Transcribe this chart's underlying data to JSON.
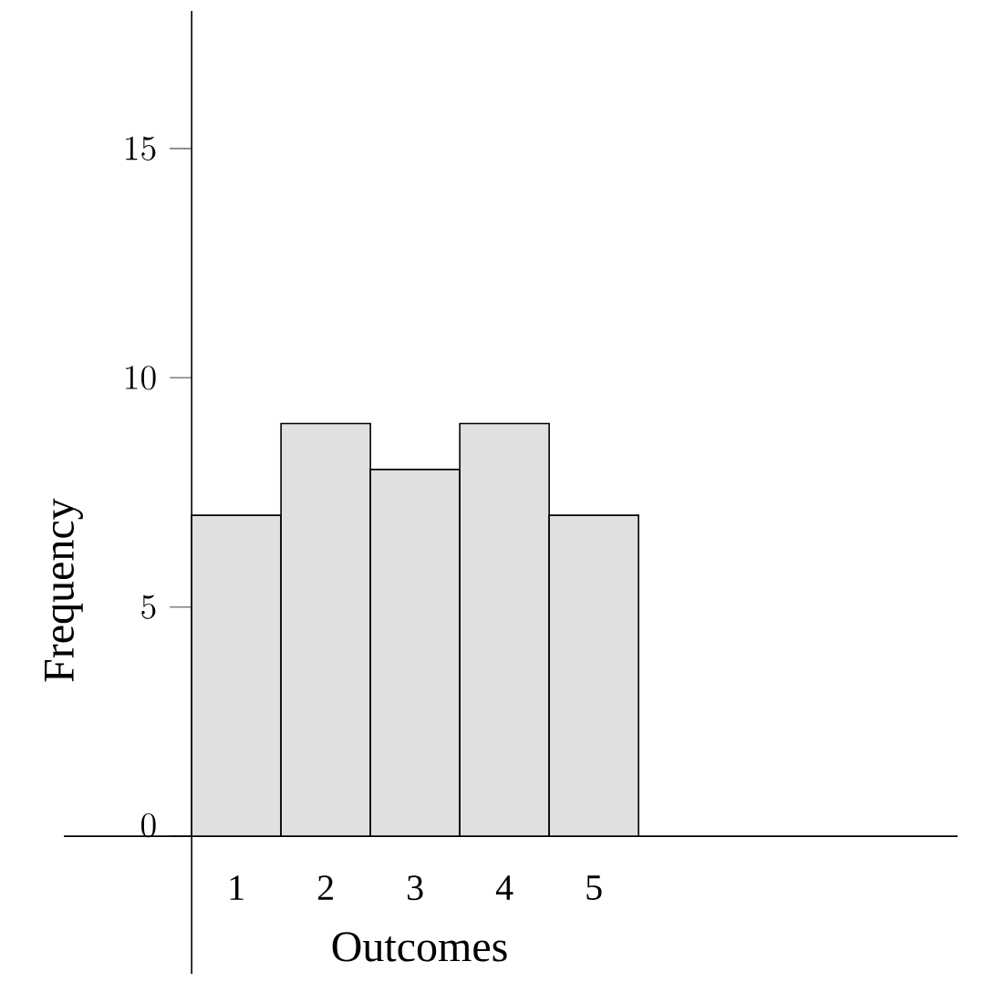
{
  "chart_data": {
    "type": "bar",
    "xlabel": "Outcomes",
    "ylabel": "Frequency",
    "categories": [
      "1",
      "2",
      "3",
      "4",
      "5"
    ],
    "values": [
      7,
      9,
      8,
      9,
      7
    ],
    "color": "#e0e0e0",
    "ylim": [
      -3,
      18
    ],
    "yticks": [
      0,
      5,
      10,
      15
    ]
  }
}
